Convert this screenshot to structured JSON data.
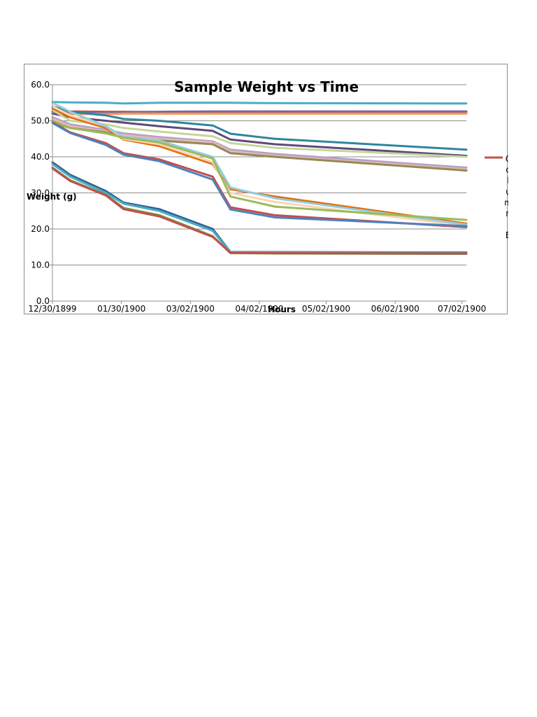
{
  "chart_data": {
    "type": "line",
    "title": "Sample Weight vs Time",
    "xlabel": "Hours",
    "ylabel": "Weight (g)",
    "ylim": [
      0,
      60
    ],
    "yticks": [
      "0.0",
      "10.0",
      "20.0",
      "30.0",
      "40.0",
      "50.0",
      "60.0"
    ],
    "xlim": [
      0,
      186
    ],
    "xticks": [
      {
        "value": 0,
        "label": "12/30/1899"
      },
      {
        "value": 31,
        "label": "01/30/1900"
      },
      {
        "value": 62,
        "label": "03/02/1900"
      },
      {
        "value": 93,
        "label": "04/02/1900"
      },
      {
        "value": 123,
        "label": "05/02/1900"
      },
      {
        "value": 154,
        "label": "06/02/1900"
      },
      {
        "value": 184,
        "label": "07/02/1900"
      }
    ],
    "grid": true,
    "legend_position": "right",
    "legend": [
      {
        "label": "Column B",
        "color": "#c0504d"
      }
    ],
    "x": [
      0,
      8,
      24,
      32,
      48,
      72,
      80,
      100,
      186
    ],
    "series": [
      {
        "color": "#4bacc6",
        "values": [
          55.2,
          55.1,
          55.0,
          54.8,
          55.0,
          55.0,
          55.0,
          54.9,
          54.8
        ]
      },
      {
        "color": "#c0504d",
        "values": [
          52.8,
          52.6,
          52.5,
          52.5,
          52.4,
          52.4,
          52.4,
          52.4,
          52.4
        ]
      },
      {
        "color": "#8064a2",
        "values": [
          52.6,
          52.4,
          52.3,
          52.4,
          52.5,
          52.6,
          52.6,
          52.6,
          52.6
        ]
      },
      {
        "color": "#f79646",
        "values": [
          52.0,
          51.9,
          51.9,
          52.0,
          52.0,
          52.0,
          52.0,
          52.0,
          52.0
        ]
      },
      {
        "color": "#31859c",
        "values": [
          54.0,
          52.5,
          51.5,
          50.5,
          50.0,
          48.7,
          46.4,
          45.0,
          42.0
        ]
      },
      {
        "color": "#5f497a",
        "values": [
          52.0,
          51.0,
          50.0,
          49.5,
          48.5,
          47.2,
          44.8,
          43.5,
          40.3
        ]
      },
      {
        "color": "#c4d79b",
        "values": [
          53.0,
          50.0,
          49.0,
          48.0,
          47.0,
          45.7,
          43.8,
          42.5,
          40.0
        ]
      },
      {
        "color": "#b3a2c7",
        "values": [
          51.0,
          49.0,
          47.5,
          46.5,
          45.5,
          44.3,
          42.0,
          40.8,
          37.0
        ]
      },
      {
        "color": "#e6b9b8",
        "values": [
          50.5,
          48.5,
          47.0,
          46.0,
          45.0,
          44.0,
          41.5,
          40.3,
          36.5
        ]
      },
      {
        "color": "#948a54",
        "values": [
          49.5,
          48.0,
          46.8,
          45.5,
          44.5,
          43.5,
          41.0,
          40.0,
          36.2
        ]
      },
      {
        "color": "#e46c0a",
        "values": [
          53.5,
          51.0,
          48.0,
          44.8,
          43.0,
          38.0,
          31.0,
          29.0,
          21.5
        ]
      },
      {
        "color": "#fcd5b5",
        "values": [
          54.0,
          51.5,
          48.5,
          45.0,
          43.5,
          38.5,
          30.0,
          27.5,
          20.8
        ]
      },
      {
        "color": "#93cddd",
        "values": [
          55.0,
          52.5,
          48.5,
          45.5,
          44.5,
          40.0,
          31.5,
          28.5,
          21.2
        ]
      },
      {
        "color": "#9bbb59",
        "values": [
          50.0,
          48.0,
          46.5,
          45.3,
          44.0,
          39.5,
          29.0,
          26.2,
          22.5
        ]
      },
      {
        "color": "#c0504d",
        "values": [
          49.6,
          46.8,
          43.8,
          41.0,
          39.3,
          34.5,
          26.0,
          23.8,
          20.5
        ]
      },
      {
        "color": "#4f81bd",
        "values": [
          49.4,
          46.6,
          43.3,
          40.6,
          38.8,
          33.7,
          25.4,
          23.2,
          20.8
        ]
      },
      {
        "color": "#376092",
        "values": [
          38.5,
          35.0,
          30.5,
          27.3,
          25.5,
          20.0,
          13.6,
          13.6,
          13.5
        ]
      },
      {
        "color": "#4bacc6",
        "values": [
          38.0,
          34.5,
          30.0,
          27.0,
          25.0,
          19.5,
          13.5,
          13.5,
          13.4
        ]
      },
      {
        "color": "#77933c",
        "values": [
          37.0,
          33.5,
          29.5,
          25.8,
          23.8,
          18.0,
          13.3,
          13.2,
          13.1
        ]
      },
      {
        "color": "#c0504d",
        "values": [
          36.8,
          33.3,
          29.3,
          25.5,
          23.5,
          17.8,
          13.4,
          13.3,
          13.2
        ]
      }
    ]
  }
}
